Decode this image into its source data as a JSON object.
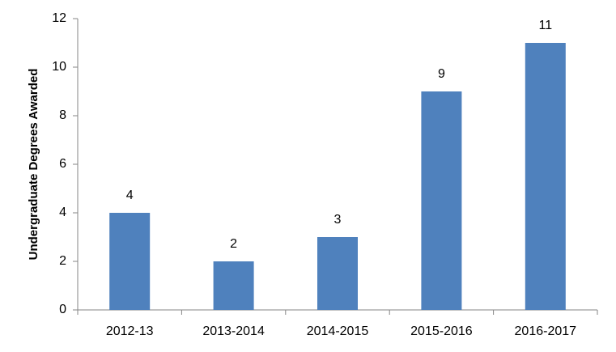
{
  "chart_data": {
    "type": "bar",
    "y_label": "Undergraduate Degrees Awarded",
    "categories": [
      "2012-13",
      "2013-2014",
      "2014-2015",
      "2015-2016",
      "2016-2017"
    ],
    "values": [
      4,
      2,
      3,
      9,
      11
    ],
    "color": "#4f81bd",
    "ylim": [
      0,
      12
    ],
    "yticks": [
      0,
      2,
      4,
      6,
      8,
      10,
      12
    ],
    "grid": false,
    "data_labels": true
  }
}
